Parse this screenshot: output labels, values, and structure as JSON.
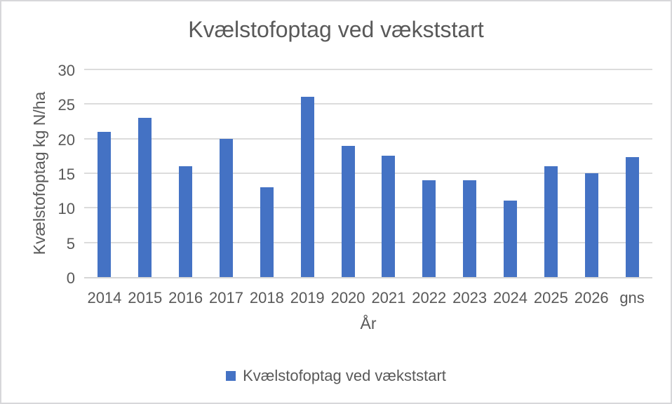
{
  "chart": {
    "title": "Kvælstofoptag ved vækststart",
    "xlabel": "År",
    "ylabel": "Kvælstofoptag kg N/ha",
    "legend_label": "Kvælstofoptag ved vækststart"
  },
  "chart_data": {
    "type": "bar",
    "title": "Kvælstofoptag ved vækststart",
    "xlabel": "År",
    "ylabel": "Kvælstofoptag kg N/ha",
    "categories": [
      "2014",
      "2015",
      "2016",
      "2017",
      "2018",
      "2019",
      "2020",
      "2021",
      "2022",
      "2023",
      "2024",
      "2025",
      "2026",
      "gns"
    ],
    "values": [
      21,
      23,
      16,
      20,
      13,
      26,
      19,
      17.5,
      14,
      14,
      11,
      16,
      15,
      17.3
    ],
    "ylim": [
      0,
      30
    ],
    "yticks": [
      0,
      5,
      10,
      15,
      20,
      25,
      30
    ],
    "grid": true,
    "legend_entries": [
      "Kvælstofoptag ved vækststart"
    ],
    "legend_position": "bottom",
    "bar_color": "#4472C4"
  },
  "colors": {
    "bar": "#4472C4",
    "gridline": "#DCDCDC",
    "axis_line": "#D6D6D6",
    "text": "#595959",
    "frame_border": "#D7D7DA",
    "background": "#FFFFFF"
  }
}
